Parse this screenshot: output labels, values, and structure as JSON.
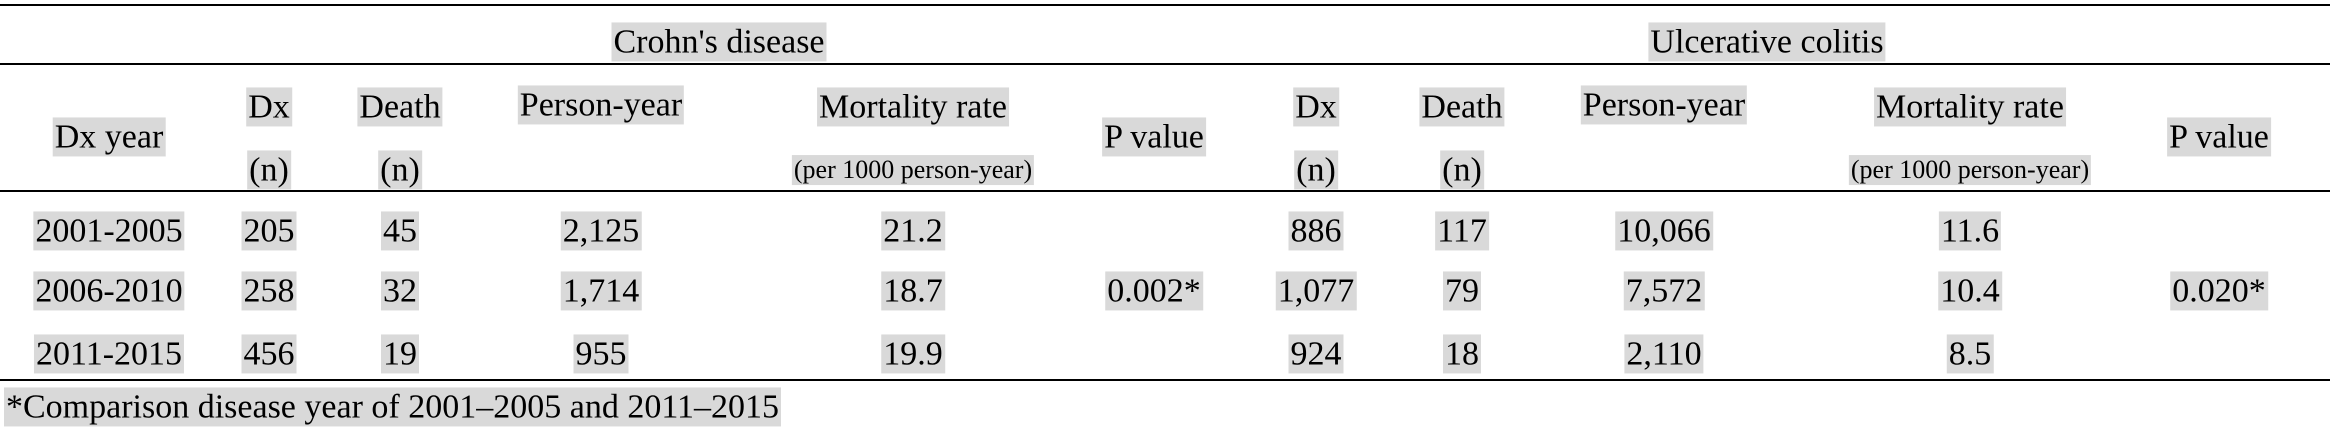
{
  "table": {
    "group_headers": [
      "Crohn's disease",
      "Ulcerative colitis"
    ],
    "dx_year": "Dx year",
    "columns": [
      [
        {
          "label": "Dx",
          "sub": "(n)"
        },
        {
          "label": "Death",
          "sub": "(n)"
        },
        {
          "label": "Person-year"
        },
        {
          "label": "Mortality rate",
          "sub": "(per 1000 person-year)"
        },
        {
          "label": "P value"
        }
      ],
      [
        {
          "label": "Dx",
          "sub": "(n)"
        },
        {
          "label": "Death",
          "sub": "(n)"
        },
        {
          "label": "Person-year"
        },
        {
          "label": "Mortality rate",
          "sub": "(per 1000 person-year)"
        },
        {
          "label": "P value"
        }
      ]
    ],
    "rows": [
      {
        "year": "2001-2005",
        "groups": [
          [
            "205",
            "45",
            "2,125",
            "21.2"
          ],
          [
            "886",
            "117",
            "10,066",
            "11.6"
          ]
        ]
      },
      {
        "year": "2006-2010",
        "groups": [
          [
            "258",
            "32",
            "1,714",
            "18.7"
          ],
          [
            "1,077",
            "79",
            "7,572",
            "10.4"
          ]
        ]
      },
      {
        "year": "2011-2015",
        "groups": [
          [
            "456",
            "19",
            "955",
            "19.9"
          ],
          [
            "924",
            "18",
            "2,110",
            "8.5"
          ]
        ]
      }
    ],
    "p_values": [
      "0.002*",
      "0.020*"
    ]
  },
  "footnote": "*Comparison disease year of 2001–2005 and 2011–2015"
}
